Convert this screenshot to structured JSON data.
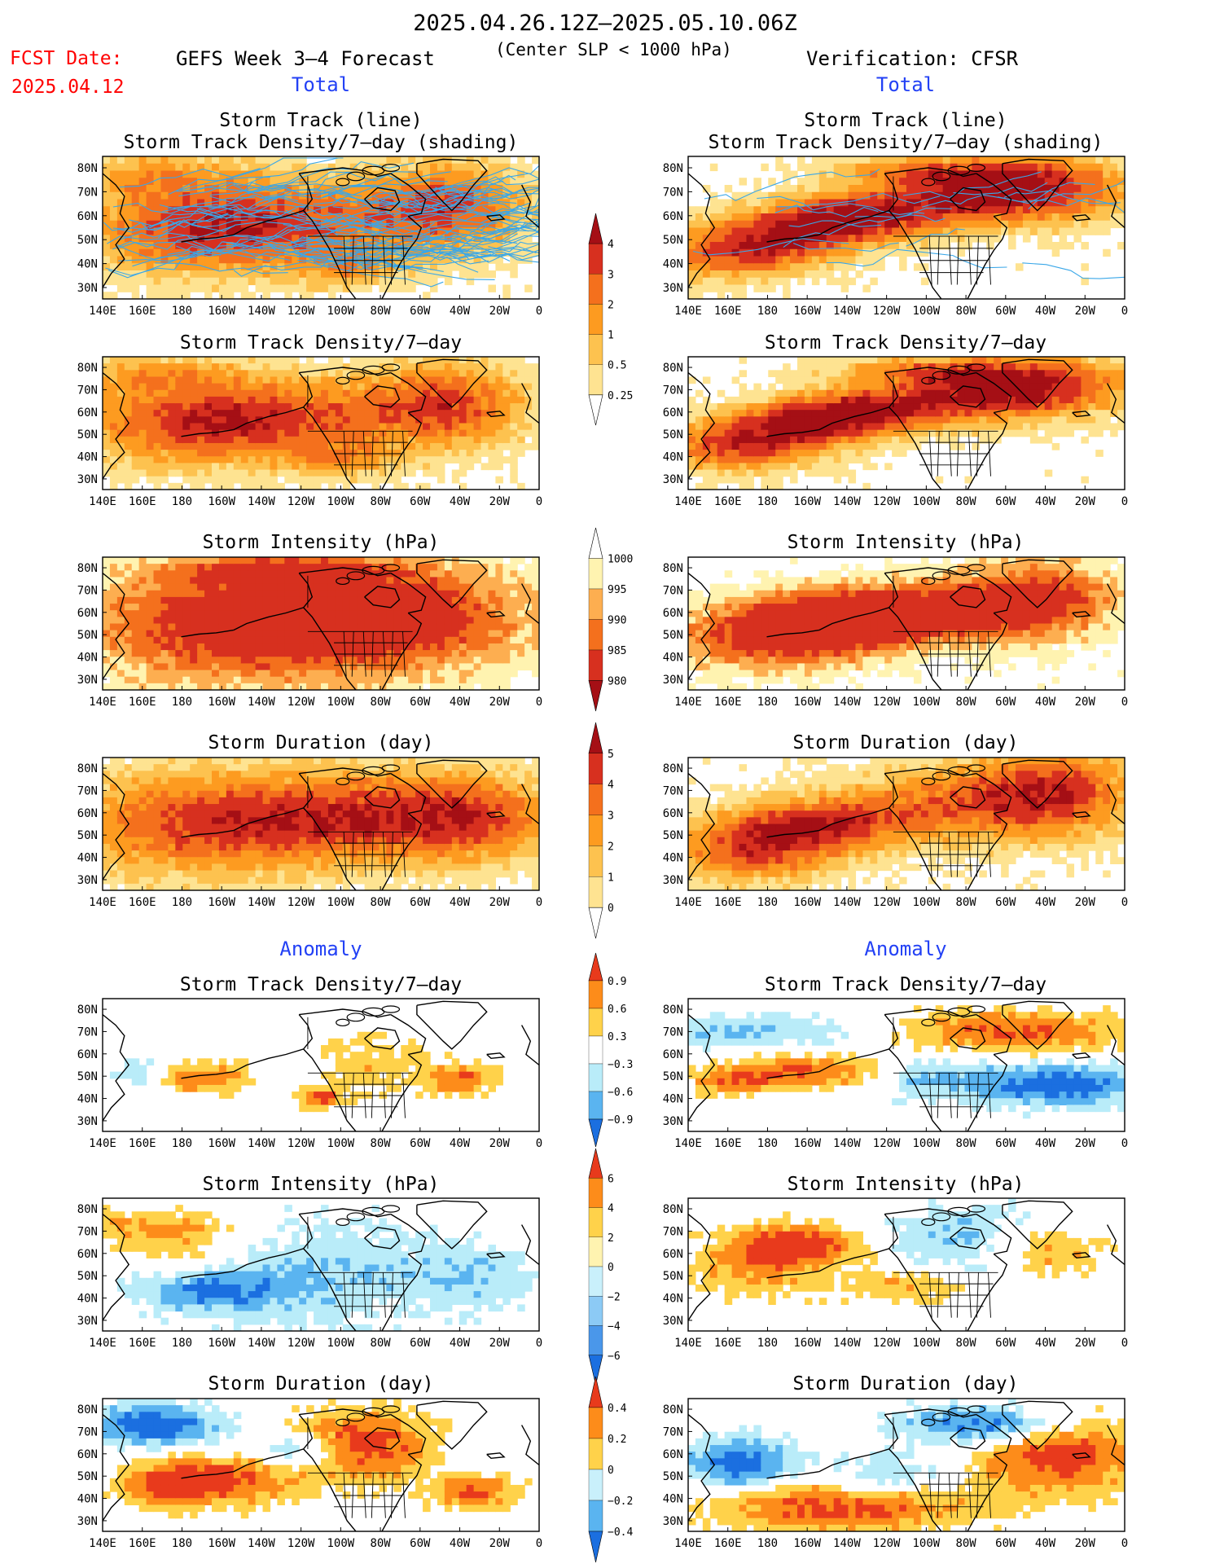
{
  "header": {
    "period": "2025.04.26.12Z–2025.05.10.06Z",
    "fcst_label": "FCST Date:",
    "fcst_date": "2025.04.12",
    "forecast_title": "GEFS Week 3–4 Forecast",
    "criterion": "(Center SLP < 1000 hPa)",
    "verification_title": "Verification: CFSR"
  },
  "sections": {
    "total": "Total",
    "anomaly": "Anomaly"
  },
  "panel_titles": {
    "track_line": "Storm Track (line)",
    "track_line_shading": "Storm Track Density/7–day (shading)",
    "density": "Storm Track Density/7–day",
    "intensity": "Storm Intensity (hPa)",
    "duration": "Storm Duration (day)"
  },
  "axes": {
    "lon_ticks": [
      "140E",
      "160E",
      "180",
      "160W",
      "140W",
      "120W",
      "100W",
      "80W",
      "60W",
      "40W",
      "20W",
      "0"
    ],
    "lat_ticks": [
      "80N",
      "70N",
      "60N",
      "50N",
      "40N",
      "30N"
    ]
  },
  "colorbars": [
    {
      "name": "density-total-colorbar",
      "labels": [
        "4",
        "3",
        "2",
        "1",
        "0.5",
        "0.25"
      ],
      "colors": [
        "#a50f15",
        "#d7301f",
        "#f4701d",
        "#fd9b20",
        "#fdc24f",
        "#fee391",
        "#ffffff"
      ]
    },
    {
      "name": "intensity-total-colorbar",
      "labels": [
        "1000",
        "995",
        "990",
        "985",
        "980"
      ],
      "colors": [
        "#ffffff",
        "#fff3b0",
        "#fdae50",
        "#f4701d",
        "#d7301f",
        "#a50f15"
      ]
    },
    {
      "name": "duration-total-colorbar",
      "labels": [
        "5",
        "4",
        "3",
        "2",
        "1",
        "0"
      ],
      "colors": [
        "#a50f15",
        "#d7301f",
        "#f4701d",
        "#fd9b20",
        "#fdc24f",
        "#fee391",
        "#ffffff"
      ]
    },
    {
      "name": "density-anomaly-colorbar",
      "labels": [
        "0.9",
        "0.6",
        "0.3",
        "−0.3",
        "−0.6",
        "−0.9"
      ],
      "colors": [
        "#e83a1c",
        "#fd8c1a",
        "#ffd24a",
        "#ffffff",
        "#b9ecf9",
        "#5ab4f0",
        "#1b6fe0"
      ]
    },
    {
      "name": "intensity-anomaly-colorbar",
      "labels": [
        "6",
        "4",
        "2",
        "0",
        "−2",
        "−4",
        "−6"
      ],
      "colors": [
        "#e83a1c",
        "#fd8c1a",
        "#ffd24a",
        "#fff3b0",
        "#c9f0fb",
        "#8ccaf5",
        "#4a97ea",
        "#1b6fe0"
      ]
    },
    {
      "name": "duration-anomaly-colorbar",
      "labels": [
        "0.4",
        "0.2",
        "0",
        "−0.2",
        "−0.4"
      ],
      "colors": [
        "#e83a1c",
        "#fd8c1a",
        "#ffd24a",
        "#c9f0fb",
        "#5ab4f0",
        "#1b6fe0"
      ]
    }
  ],
  "colors": {
    "forecast_red": "#ff0000",
    "section_blue": "#2341f5",
    "track_line": "#3aa7e8",
    "coast_line": "#000000"
  }
}
